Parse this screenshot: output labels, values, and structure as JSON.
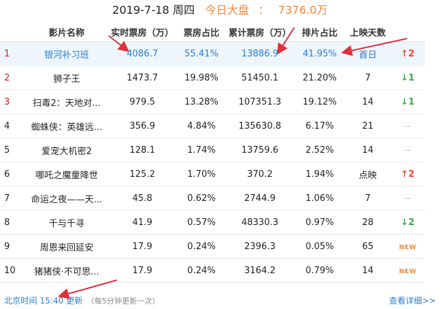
{
  "header": {
    "date": "2019-7-18 周四",
    "today_label": "今日大盘",
    "separator": "：",
    "today_value": "7376.0万"
  },
  "columns": [
    "影片名称",
    "实时票房（万）",
    "票房占比",
    "累计票房（万）",
    "排片占比",
    "上映天数"
  ],
  "rows": [
    {
      "rank": "1",
      "name": "银河补习班",
      "realtime": "4086.7",
      "share": "55.41%",
      "total": "13886.9",
      "screen": "41.95%",
      "days": "首日",
      "trend": "up",
      "trend_text": "↑2"
    },
    {
      "rank": "2",
      "name": "狮子王",
      "realtime": "1473.7",
      "share": "19.98%",
      "total": "51450.1",
      "screen": "21.20%",
      "days": "7",
      "trend": "down",
      "trend_text": "↓1"
    },
    {
      "rank": "3",
      "name": "扫毒2：天地对...",
      "realtime": "979.5",
      "share": "13.28%",
      "total": "107351.3",
      "screen": "19.12%",
      "days": "14",
      "trend": "down",
      "trend_text": "↓1"
    },
    {
      "rank": "4",
      "name": "蜘蛛侠：英雄远...",
      "realtime": "356.9",
      "share": "4.84%",
      "total": "135630.8",
      "screen": "6.17%",
      "days": "21",
      "trend": "flat",
      "trend_text": "--"
    },
    {
      "rank": "5",
      "name": "爱宠大机密2",
      "realtime": "128.1",
      "share": "1.74%",
      "total": "13759.6",
      "screen": "2.52%",
      "days": "14",
      "trend": "flat",
      "trend_text": "--"
    },
    {
      "rank": "6",
      "name": "哪吒之魔童降世",
      "realtime": "125.2",
      "share": "1.70%",
      "total": "370.2",
      "screen": "1.94%",
      "days": "点映",
      "trend": "up",
      "trend_text": "↑2"
    },
    {
      "rank": "7",
      "name": "命运之夜——天...",
      "realtime": "45.8",
      "share": "0.62%",
      "total": "2744.9",
      "screen": "1.06%",
      "days": "7",
      "trend": "flat",
      "trend_text": "--"
    },
    {
      "rank": "8",
      "name": "千与千寻",
      "realtime": "41.9",
      "share": "0.57%",
      "total": "48330.3",
      "screen": "0.97%",
      "days": "28",
      "trend": "down",
      "trend_text": "↓2"
    },
    {
      "rank": "9",
      "name": "周恩来回延安",
      "realtime": "17.9",
      "share": "0.24%",
      "total": "2396.3",
      "screen": "0.05%",
      "days": "65",
      "trend": "new",
      "trend_text": "NEW"
    },
    {
      "rank": "10",
      "name": "猪猪侠·不可思...",
      "realtime": "17.9",
      "share": "0.24%",
      "total": "3164.2",
      "screen": "0.79%",
      "days": "14",
      "trend": "new",
      "trend_text": "NEW"
    }
  ],
  "footer": {
    "update_text": "北京时间 15:40 更新",
    "update_note": "（每5分钟更新一次）",
    "details_link": "查看详细>>"
  },
  "colors": {
    "accent_blue": "#2a7fd0",
    "highlight_orange": "#f0893c",
    "annotation_red": "#e0303a",
    "trend_up": "#e84a3a",
    "trend_down": "#3aa84a"
  }
}
